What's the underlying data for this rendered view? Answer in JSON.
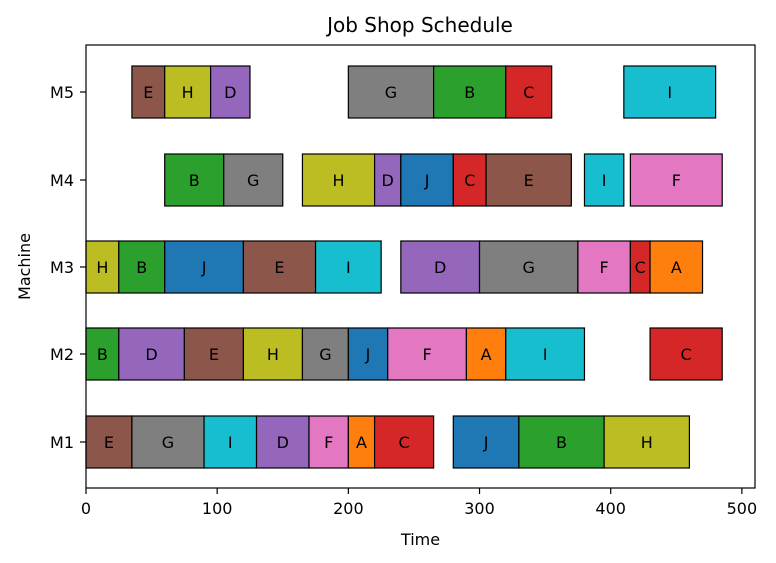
{
  "chart_data": {
    "type": "gantt",
    "title": "Job Shop Schedule",
    "xlabel": "Time",
    "ylabel": "Machine",
    "xlim": [
      0,
      510
    ],
    "xticks": [
      0,
      100,
      200,
      300,
      400,
      500
    ],
    "machines": [
      "M1",
      "M2",
      "M3",
      "M4",
      "M5"
    ],
    "grid": false,
    "job_colors": {
      "A": "#ff7f0e",
      "B": "#2ca02c",
      "C": "#d62728",
      "D": "#9467bd",
      "E": "#8c564b",
      "F": "#e377c2",
      "G": "#7f7f7f",
      "H": "#bcbd22",
      "I": "#17becf",
      "J": "#1f77b4"
    },
    "tasks": [
      {
        "machine": "M1",
        "job": "E",
        "start": 0,
        "end": 35
      },
      {
        "machine": "M1",
        "job": "G",
        "start": 35,
        "end": 90
      },
      {
        "machine": "M1",
        "job": "I",
        "start": 90,
        "end": 130
      },
      {
        "machine": "M1",
        "job": "D",
        "start": 130,
        "end": 170
      },
      {
        "machine": "M1",
        "job": "F",
        "start": 170,
        "end": 200
      },
      {
        "machine": "M1",
        "job": "A",
        "start": 200,
        "end": 220
      },
      {
        "machine": "M1",
        "job": "C",
        "start": 220,
        "end": 265
      },
      {
        "machine": "M1",
        "job": "J",
        "start": 280,
        "end": 330
      },
      {
        "machine": "M1",
        "job": "B",
        "start": 330,
        "end": 395
      },
      {
        "machine": "M1",
        "job": "H",
        "start": 395,
        "end": 460
      },
      {
        "machine": "M2",
        "job": "B",
        "start": 0,
        "end": 25
      },
      {
        "machine": "M2",
        "job": "D",
        "start": 25,
        "end": 75
      },
      {
        "machine": "M2",
        "job": "E",
        "start": 75,
        "end": 120
      },
      {
        "machine": "M2",
        "job": "H",
        "start": 120,
        "end": 165
      },
      {
        "machine": "M2",
        "job": "G",
        "start": 165,
        "end": 200
      },
      {
        "machine": "M2",
        "job": "J",
        "start": 200,
        "end": 230
      },
      {
        "machine": "M2",
        "job": "F",
        "start": 230,
        "end": 290
      },
      {
        "machine": "M2",
        "job": "A",
        "start": 290,
        "end": 320
      },
      {
        "machine": "M2",
        "job": "I",
        "start": 320,
        "end": 380
      },
      {
        "machine": "M2",
        "job": "C",
        "start": 430,
        "end": 485
      },
      {
        "machine": "M3",
        "job": "H",
        "start": 0,
        "end": 25
      },
      {
        "machine": "M3",
        "job": "B",
        "start": 25,
        "end": 60
      },
      {
        "machine": "M3",
        "job": "J",
        "start": 60,
        "end": 120
      },
      {
        "machine": "M3",
        "job": "E",
        "start": 120,
        "end": 175
      },
      {
        "machine": "M3",
        "job": "I",
        "start": 175,
        "end": 225
      },
      {
        "machine": "M3",
        "job": "D",
        "start": 240,
        "end": 300
      },
      {
        "machine": "M3",
        "job": "G",
        "start": 300,
        "end": 375
      },
      {
        "machine": "M3",
        "job": "F",
        "start": 375,
        "end": 415
      },
      {
        "machine": "M3",
        "job": "C",
        "start": 415,
        "end": 430
      },
      {
        "machine": "M3",
        "job": "A",
        "start": 430,
        "end": 470
      },
      {
        "machine": "M4",
        "job": "B",
        "start": 60,
        "end": 105
      },
      {
        "machine": "M4",
        "job": "G",
        "start": 105,
        "end": 150
      },
      {
        "machine": "M4",
        "job": "H",
        "start": 165,
        "end": 220
      },
      {
        "machine": "M4",
        "job": "D",
        "start": 220,
        "end": 240
      },
      {
        "machine": "M4",
        "job": "J",
        "start": 240,
        "end": 280
      },
      {
        "machine": "M4",
        "job": "C",
        "start": 280,
        "end": 305
      },
      {
        "machine": "M4",
        "job": "E",
        "start": 305,
        "end": 370
      },
      {
        "machine": "M4",
        "job": "I",
        "start": 380,
        "end": 410
      },
      {
        "machine": "M4",
        "job": "F",
        "start": 415,
        "end": 485
      },
      {
        "machine": "M5",
        "job": "E",
        "start": 35,
        "end": 60
      },
      {
        "machine": "M5",
        "job": "H",
        "start": 60,
        "end": 95
      },
      {
        "machine": "M5",
        "job": "D",
        "start": 95,
        "end": 125
      },
      {
        "machine": "M5",
        "job": "G",
        "start": 200,
        "end": 265
      },
      {
        "machine": "M5",
        "job": "B",
        "start": 265,
        "end": 320
      },
      {
        "machine": "M5",
        "job": "C",
        "start": 320,
        "end": 355
      },
      {
        "machine": "M5",
        "job": "I",
        "start": 410,
        "end": 480
      }
    ]
  }
}
